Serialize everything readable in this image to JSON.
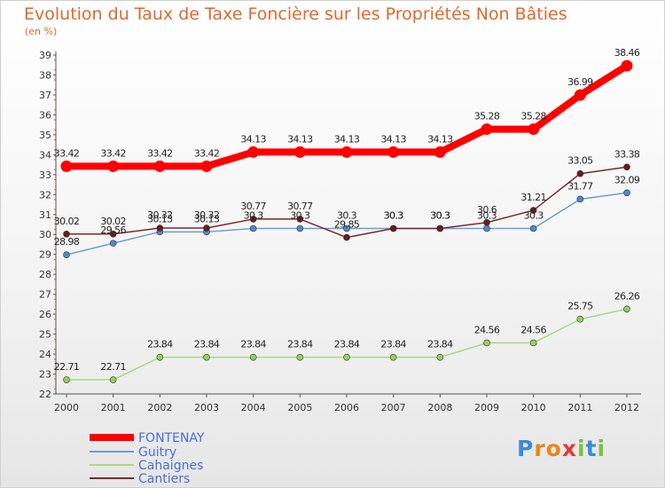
{
  "title": "Evolution du Taux de Taxe Foncière sur les Propriétés Non Bâties",
  "unit": "(en %)",
  "brand": "Proxiti",
  "chart_data": {
    "type": "line",
    "title": "Evolution du Taux de Taxe Foncière sur les Propriétés Non Bâties",
    "ylabel": "(en %)",
    "xlabel": "",
    "ylim": [
      22,
      39
    ],
    "yticks": [
      22,
      23,
      24,
      25,
      26,
      27,
      28,
      29,
      30,
      31,
      32,
      33,
      34,
      35,
      36,
      37,
      38,
      39
    ],
    "categories": [
      "2000",
      "2001",
      "2002",
      "2003",
      "2004",
      "2005",
      "2006",
      "2007",
      "2008",
      "2009",
      "2010",
      "2011",
      "2012"
    ],
    "grid": false,
    "legend_position": "bottom-left",
    "series": [
      {
        "name": "FONTENAY",
        "color": "#ff0000",
        "values": [
          33.42,
          33.42,
          33.42,
          33.42,
          34.13,
          34.13,
          34.13,
          34.13,
          34.13,
          35.28,
          35.28,
          36.99,
          38.46
        ],
        "labels": [
          "33.42",
          "33.42",
          "33.42",
          "33.42",
          "34.13",
          "34.13",
          "34.13",
          "34.13",
          "34.13",
          "35.28",
          "35.28",
          "36.99",
          "38.46"
        ]
      },
      {
        "name": "Guitry",
        "color": "#6a9fd2",
        "values": [
          28.98,
          29.56,
          30.13,
          30.13,
          30.3,
          30.3,
          30.3,
          30.3,
          30.3,
          30.3,
          30.3,
          31.77,
          32.09
        ],
        "labels": [
          "28.98",
          "29.56",
          "30.13",
          "30.13",
          "30.3",
          "30.3",
          "30.3",
          "30.3",
          "30.3",
          "30.3",
          "30.3",
          "31.77",
          "32.09"
        ]
      },
      {
        "name": "Cahaignes",
        "color": "#a6d985",
        "values": [
          22.71,
          22.71,
          23.84,
          23.84,
          23.84,
          23.84,
          23.84,
          23.84,
          23.84,
          24.56,
          24.56,
          25.75,
          26.26
        ],
        "labels": [
          "22.71",
          "22.71",
          "23.84",
          "23.84",
          "23.84",
          "23.84",
          "23.84",
          "23.84",
          "23.84",
          "24.56",
          "24.56",
          "25.75",
          "26.26"
        ]
      },
      {
        "name": "Cantiers",
        "color": "#7a2a2a",
        "values": [
          30.02,
          30.02,
          30.32,
          30.32,
          30.77,
          30.77,
          29.85,
          30.3,
          30.3,
          30.6,
          31.21,
          33.05,
          33.38
        ],
        "labels": [
          "30.02",
          "30.02",
          "30.32",
          "30.32",
          "30.77",
          "30.77",
          "29.85",
          "30.3",
          "30.3",
          "30.6",
          "31.21",
          "33.05",
          "33.38"
        ]
      }
    ]
  }
}
